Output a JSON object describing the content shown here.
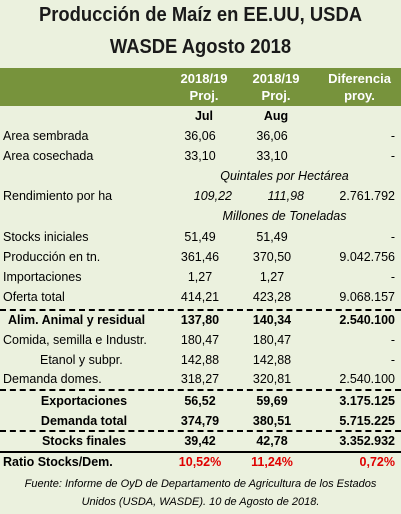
{
  "title": [
    "Producción de Maíz en EE.UU, USDA",
    "WASDE Agosto 2018"
  ],
  "header": {
    "columns": [
      [
        "2018/19",
        "Proj."
      ],
      [
        "2018/19",
        "Proj."
      ],
      [
        "Diferencia",
        "proy."
      ]
    ],
    "months": [
      "Jul",
      "Aug"
    ]
  },
  "table": {
    "rows": [
      [
        "Area sembrada",
        "36,06",
        "36,06",
        "-"
      ],
      [
        "Area cosechada",
        "33,10",
        "33,10",
        "-"
      ],
      [
        "Quintales por Hectárea"
      ],
      [
        "Rendimiento por ha",
        "109,22",
        "111,98",
        "2.761.792"
      ],
      [
        "Millones de Toneladas"
      ],
      [
        "Stocks iniciales",
        "51,49",
        "51,49",
        "-"
      ],
      [
        "Producción en tn.",
        "361,46",
        "370,50",
        "9.042.756"
      ],
      [
        "Importaciones",
        "1,27",
        "1,27",
        "-"
      ],
      [
        "Oferta total",
        "414,21",
        "423,28",
        "9.068.157"
      ],
      [
        "Alim. Animal y residual",
        "137,80",
        "140,34",
        "2.540.100"
      ],
      [
        "Comida, semilla e Industr.",
        "180,47",
        "180,47",
        "-"
      ],
      [
        "Etanol y subpr.",
        "142,88",
        "142,88",
        "-"
      ],
      [
        "Demanda domes.",
        "318,27",
        "320,81",
        "2.540.100"
      ],
      [
        "Exportaciones",
        "56,52",
        "59,69",
        "3.175.125"
      ],
      [
        "Demanda total",
        "374,79",
        "380,51",
        "5.715.225"
      ],
      [
        "Stocks finales",
        "39,42",
        "42,78",
        "3.352.932"
      ],
      [
        "Ratio Stocks/Dem.",
        "10,52%",
        "11,24%",
        "0,72%"
      ]
    ]
  },
  "footer": [
    "Fuente: Informe de OyD de Departamento de Agricultura de los Estados",
    "Unidos (USDA, WASDE). 10 de Agosto de 2018."
  ]
}
